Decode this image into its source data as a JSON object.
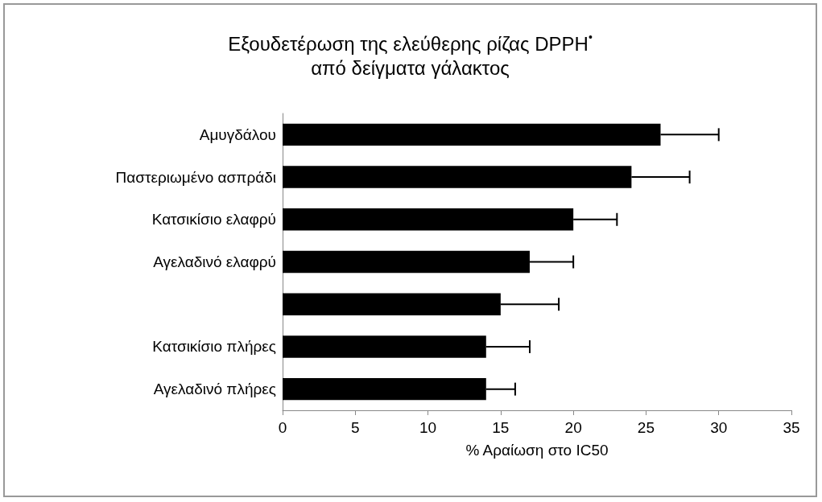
{
  "chart_data": {
    "type": "bar",
    "orientation": "horizontal",
    "title": "Εξουδετέρωση της ελεύθερης ρίζας DPPH$^{•}$\nαπό δείγματα γάλακτος",
    "xlabel": "% Αραίωση στο IC50",
    "categories": [
      "Αμυγδάλου",
      "Παστεριωμένο ασπράδι",
      "Κατσικίσιο ελαφρύ",
      "Αγελαδινό ελαφρύ",
      null,
      "Κατσικίσιο πλήρες",
      "Αγελαδινό πλήρες"
    ],
    "values": [
      26,
      24,
      20,
      17,
      15,
      14,
      14
    ],
    "errors": [
      4,
      4,
      3,
      3,
      4,
      3,
      2
    ],
    "color": "#000000",
    "xlim": [
      0,
      35
    ],
    "xticks": [
      0,
      5,
      10,
      15,
      20,
      25,
      30,
      35
    ],
    "grid": false
  }
}
